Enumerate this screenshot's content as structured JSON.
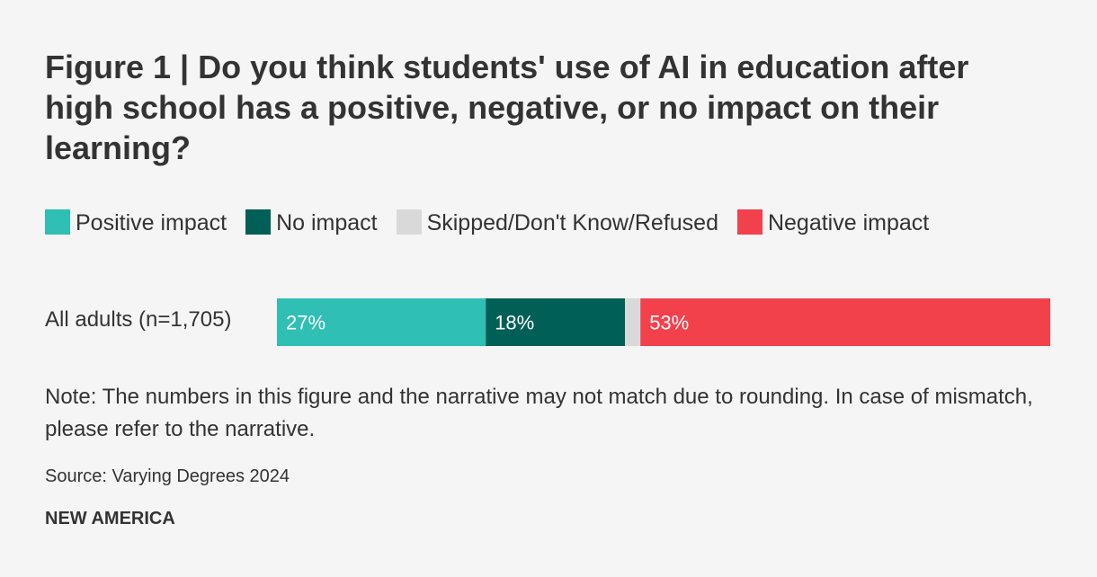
{
  "chart_data": {
    "type": "bar",
    "orientation": "horizontal",
    "stacked": true,
    "title": "Figure 1 | Do you think students' use of AI in education after high school has a positive, negative, or no impact on their learning?",
    "categories": [
      "All adults (n=1,705)"
    ],
    "series": [
      {
        "name": "Positive impact",
        "values": [
          27
        ],
        "label": "27%",
        "color": "#2fbfb4",
        "label_color": "#ffffff"
      },
      {
        "name": "No impact",
        "values": [
          18
        ],
        "label": "18%",
        "color": "#005f57",
        "label_color": "#ffffff"
      },
      {
        "name": "Skipped/Don't Know/Refused",
        "values": [
          2
        ],
        "label": "",
        "color": "#d9d9d9",
        "label_color": "#333333"
      },
      {
        "name": "Negative impact",
        "values": [
          53
        ],
        "label": "53%",
        "color": "#f3414c",
        "label_color": "#ffffff"
      }
    ],
    "xlim": [
      0,
      100
    ],
    "legend_position": "top",
    "grid": false,
    "note": "Note: The numbers in this figure and the narrative may not match due to rounding. In case of mismatch, please refer to the narrative.",
    "source": "Source: Varying Degrees 2024",
    "brand": "NEW AMERICA"
  }
}
